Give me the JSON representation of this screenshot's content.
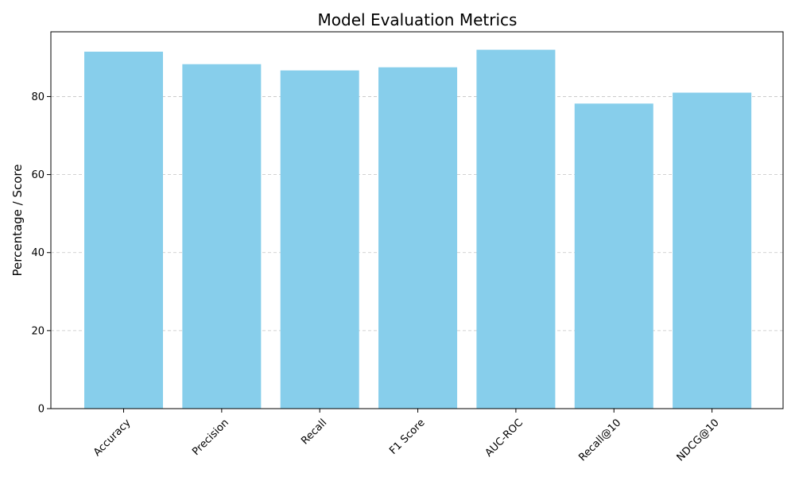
{
  "chart_data": {
    "type": "bar",
    "title": "Model Evaluation Metrics",
    "xlabel": "",
    "ylabel": "Percentage / Score",
    "categories": [
      "Accuracy",
      "Precision",
      "Recall",
      "F1 Score",
      "AUC-ROC",
      "Recall@10",
      "NDCG@10"
    ],
    "values": [
      91.5,
      88.3,
      86.7,
      87.5,
      92.0,
      78.2,
      81.0
    ],
    "ylim": [
      0,
      96.6
    ],
    "yticks": [
      0,
      20,
      40,
      60,
      80
    ],
    "ytick_labels": [
      "0",
      "20",
      "40",
      "60",
      "80"
    ],
    "grid": {
      "y": true,
      "x": false,
      "style": "dashed"
    },
    "colors": {
      "bar": "#87CEEB",
      "grid": "#c4c4c4",
      "axis": "#000000"
    },
    "legend": "none"
  }
}
